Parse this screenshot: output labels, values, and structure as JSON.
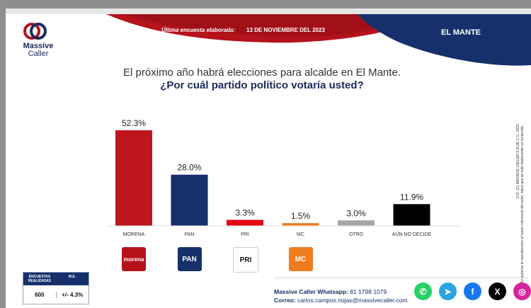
{
  "header": {
    "brand_line1": "Massive",
    "brand_line2": "Caller",
    "survey_label": "Última encuesta elaborada:",
    "survey_date": "13 DE NOVIEMBRE  DEL 2023",
    "city": "EL MANTE",
    "colors": {
      "red": "#b5121b",
      "navy": "#16306b"
    }
  },
  "question": {
    "line1": "El próximo año habrá elecciones para alcalde en El Mante.",
    "line2": "¿Por cuál partido político votaría usted?"
  },
  "chart_data": {
    "type": "bar",
    "categories": [
      "MORENA",
      "PAN",
      "PRI",
      "MC",
      "OTRO",
      "AÚN NO DECIDE"
    ],
    "values": [
      52.3,
      28.0,
      3.3,
      1.5,
      3.0,
      11.9
    ],
    "value_labels": [
      "52.3%",
      "28.0%",
      "3.3%",
      "1.5%",
      "3.0%",
      "11.9%"
    ],
    "colors": [
      "#c0151e",
      "#16306b",
      "#e30613",
      "#f07c1f",
      "#a6a6a6",
      "#000000"
    ],
    "ylim": [
      0,
      60
    ],
    "grid": false
  },
  "party_logos": [
    {
      "name": "morena",
      "text": "morena",
      "bg": "#b5121b",
      "fg": "#ffffff"
    },
    {
      "name": "pan",
      "text": "PAN",
      "bg": "#16306b",
      "fg": "#ffffff"
    },
    {
      "name": "pri",
      "text": "PRI",
      "bg": "#ffffff",
      "fg": "#111111"
    },
    {
      "name": "mc",
      "text": "MC",
      "bg": "#f07c1f",
      "fg": "#ffffff"
    }
  ],
  "stats": {
    "col1_header": "ENCUESTAS REALIZADAS",
    "col2_header": "M.E.",
    "col1_value": "600",
    "col2_value": "+/- 4.3%"
  },
  "footer": {
    "whatsapp_label": "Massive Caller Whatsapp:",
    "whatsapp_number": "81 1798 1079",
    "email_label": "Correo:",
    "email": "carlos.campos.riojas@massivecaller.com"
  },
  "side_note": {
    "line1": "D.R. (C) MASSIVE CALLER S.A DE C.V., 2023",
    "line2": "Se autoriza la reproducción al hacer referencia del autor, salvo que se esté elaborando un contenido."
  },
  "socials": [
    {
      "name": "whatsapp-icon",
      "glyph": "✆",
      "color": "#25d366"
    },
    {
      "name": "telegram-icon",
      "glyph": "➤",
      "color": "#2aa3e0"
    },
    {
      "name": "facebook-icon",
      "glyph": "f",
      "color": "#1877f2"
    },
    {
      "name": "x-icon",
      "glyph": "X",
      "color": "#000000"
    },
    {
      "name": "instagram-icon",
      "glyph": "◎",
      "color": "#d6249f"
    }
  ]
}
